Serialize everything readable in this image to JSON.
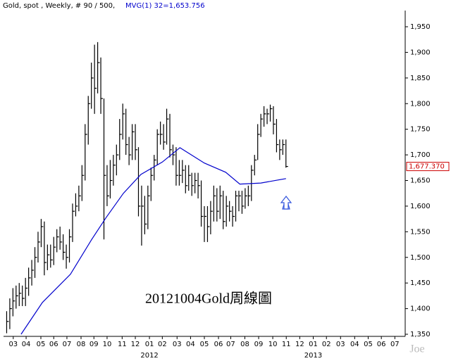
{
  "chart_data": {
    "type": "ohlc",
    "header": {
      "symbol": "Gold, spot , Weekly, # 90 / 500,",
      "indicator": "MVG(1) 32=1,653.756"
    },
    "annotation": "20121004Gold周線圖",
    "watermark": "Joe",
    "color": "#000000",
    "x": [
      1,
      2,
      3,
      4,
      5,
      6,
      7,
      8,
      9,
      10,
      11,
      12,
      13,
      14,
      15,
      16,
      17,
      18,
      19,
      20,
      21,
      22,
      23,
      24,
      25,
      26,
      27,
      28,
      29,
      30,
      31,
      32,
      33,
      34,
      35,
      36,
      37,
      38,
      39,
      40,
      41,
      42,
      43,
      44,
      45,
      46,
      47,
      48,
      49,
      50,
      51,
      52,
      53,
      54,
      55,
      56,
      57,
      58,
      59,
      60,
      61,
      62,
      63,
      64,
      65,
      66,
      67,
      68,
      69,
      70,
      71,
      72,
      73,
      74,
      75,
      76,
      77,
      78,
      79,
      80,
      81,
      82,
      83,
      84,
      85,
      86,
      87,
      88,
      89,
      90
    ],
    "high": [
      1395,
      1420,
      1440,
      1445,
      1450,
      1445,
      1460,
      1480,
      1495,
      1520,
      1550,
      1575,
      1570,
      1525,
      1525,
      1540,
      1555,
      1560,
      1545,
      1525,
      1555,
      1605,
      1625,
      1640,
      1680,
      1760,
      1815,
      1880,
      1915,
      1920,
      1890,
      1810,
      1680,
      1690,
      1700,
      1720,
      1770,
      1800,
      1790,
      1735,
      1760,
      1760,
      1715,
      1640,
      1620,
      1640,
      1675,
      1700,
      1750,
      1765,
      1760,
      1790,
      1780,
      1720,
      1715,
      1690,
      1690,
      1680,
      1680,
      1665,
      1665,
      1665,
      1650,
      1600,
      1600,
      1610,
      1640,
      1635,
      1640,
      1630,
      1620,
      1610,
      1600,
      1630,
      1630,
      1630,
      1635,
      1640,
      1680,
      1700,
      1760,
      1780,
      1795,
      1790,
      1798,
      1795,
      1770,
      1730,
      1730,
      1730
    ],
    "low": [
      1352,
      1360,
      1385,
      1400,
      1405,
      1405,
      1405,
      1425,
      1445,
      1460,
      1490,
      1520,
      1465,
      1475,
      1480,
      1485,
      1510,
      1515,
      1495,
      1478,
      1490,
      1530,
      1580,
      1590,
      1610,
      1650,
      1720,
      1790,
      1780,
      1820,
      1780,
      1535,
      1600,
      1615,
      1640,
      1660,
      1690,
      1730,
      1700,
      1680,
      1690,
      1690,
      1580,
      1523,
      1545,
      1555,
      1610,
      1650,
      1680,
      1720,
      1710,
      1720,
      1695,
      1680,
      1640,
      1640,
      1645,
      1625,
      1630,
      1620,
      1625,
      1615,
      1560,
      1530,
      1530,
      1545,
      1570,
      1570,
      1575,
      1555,
      1560,
      1570,
      1560,
      1570,
      1590,
      1585,
      1595,
      1600,
      1610,
      1660,
      1690,
      1735,
      1755,
      1760,
      1765,
      1740,
      1705,
      1690,
      1700,
      1675
    ],
    "close": [
      1375,
      1400,
      1415,
      1425,
      1430,
      1420,
      1440,
      1460,
      1475,
      1500,
      1530,
      1560,
      1490,
      1505,
      1495,
      1520,
      1540,
      1530,
      1510,
      1500,
      1540,
      1590,
      1600,
      1620,
      1660,
      1740,
      1800,
      1850,
      1830,
      1880,
      1810,
      1660,
      1620,
      1650,
      1680,
      1700,
      1740,
      1780,
      1720,
      1700,
      1745,
      1710,
      1600,
      1600,
      1565,
      1620,
      1660,
      1690,
      1740,
      1740,
      1725,
      1770,
      1710,
      1700,
      1660,
      1660,
      1670,
      1640,
      1660,
      1640,
      1650,
      1640,
      1580,
      1580,
      1560,
      1590,
      1620,
      1590,
      1620,
      1570,
      1600,
      1590,
      1580,
      1620,
      1620,
      1600,
      1620,
      1620,
      1670,
      1690,
      1740,
      1770,
      1780,
      1780,
      1790,
      1760,
      1720,
      1710,
      1720,
      1677.37
    ],
    "last_label": "1,677.370",
    "last_label_color": "#cc0000",
    "ma": {
      "color": "#0000cc",
      "x": [
        5.6,
        12.4,
        21.3,
        28.1,
        32.6,
        38.2,
        43.8,
        50.6,
        56.2,
        64,
        70.8,
        75.3,
        82,
        90
      ],
      "values": [
        1350,
        1412,
        1467,
        1535,
        1577,
        1625,
        1662,
        1686,
        1714,
        1684,
        1666,
        1643,
        1645,
        1653.756
      ]
    },
    "xlim": [
      0,
      128
    ],
    "xticks": [
      {
        "value": 3.1,
        "label": "03"
      },
      {
        "value": 7.2,
        "label": "04"
      },
      {
        "value": 11.9,
        "label": "05"
      },
      {
        "value": 16,
        "label": "06"
      },
      {
        "value": 20.2,
        "label": "07"
      },
      {
        "value": 24.7,
        "label": "08"
      },
      {
        "value": 28.8,
        "label": "09"
      },
      {
        "value": 33,
        "label": "10"
      },
      {
        "value": 37.8,
        "label": "11"
      },
      {
        "value": 42,
        "label": "12"
      },
      {
        "value": 46.5,
        "label": "01"
      },
      {
        "value": 50.6,
        "label": "02"
      },
      {
        "value": 55.3,
        "label": "03"
      },
      {
        "value": 59.6,
        "label": "04"
      },
      {
        "value": 64,
        "label": "05"
      },
      {
        "value": 68.5,
        "label": "06"
      },
      {
        "value": 72.4,
        "label": "07"
      },
      {
        "value": 76.9,
        "label": "08"
      },
      {
        "value": 81.3,
        "label": "09"
      },
      {
        "value": 85.8,
        "label": "10"
      },
      {
        "value": 90.1,
        "label": "11"
      },
      {
        "value": 94.4,
        "label": "12"
      },
      {
        "value": 98.7,
        "label": "01"
      },
      {
        "value": 102.9,
        "label": "02"
      },
      {
        "value": 107.4,
        "label": "03"
      },
      {
        "value": 111.9,
        "label": "04"
      },
      {
        "value": 116.2,
        "label": "05"
      },
      {
        "value": 120.4,
        "label": "06"
      },
      {
        "value": 124.7,
        "label": "07"
      }
    ],
    "year_ticks": [
      {
        "value": 46.5,
        "label": "2012"
      },
      {
        "value": 98.7,
        "label": "2013"
      }
    ],
    "ylim": [
      1350,
      1950
    ],
    "yticks": [
      {
        "value": 1350,
        "label": "1,350"
      },
      {
        "value": 1400,
        "label": "1,400"
      },
      {
        "value": 1450,
        "label": "1,450"
      },
      {
        "value": 1500,
        "label": "1,500"
      },
      {
        "value": 1550,
        "label": "1,550"
      },
      {
        "value": 1600,
        "label": "1,600"
      },
      {
        "value": 1650,
        "label": "1,650"
      },
      {
        "value": 1700,
        "label": "1,700"
      },
      {
        "value": 1750,
        "label": "1,750"
      },
      {
        "value": 1800,
        "label": "1,800"
      },
      {
        "value": 1850,
        "label": "1,850"
      },
      {
        "value": 1900,
        "label": "1,900"
      },
      {
        "value": 1950,
        "label": "1,950"
      }
    ]
  }
}
